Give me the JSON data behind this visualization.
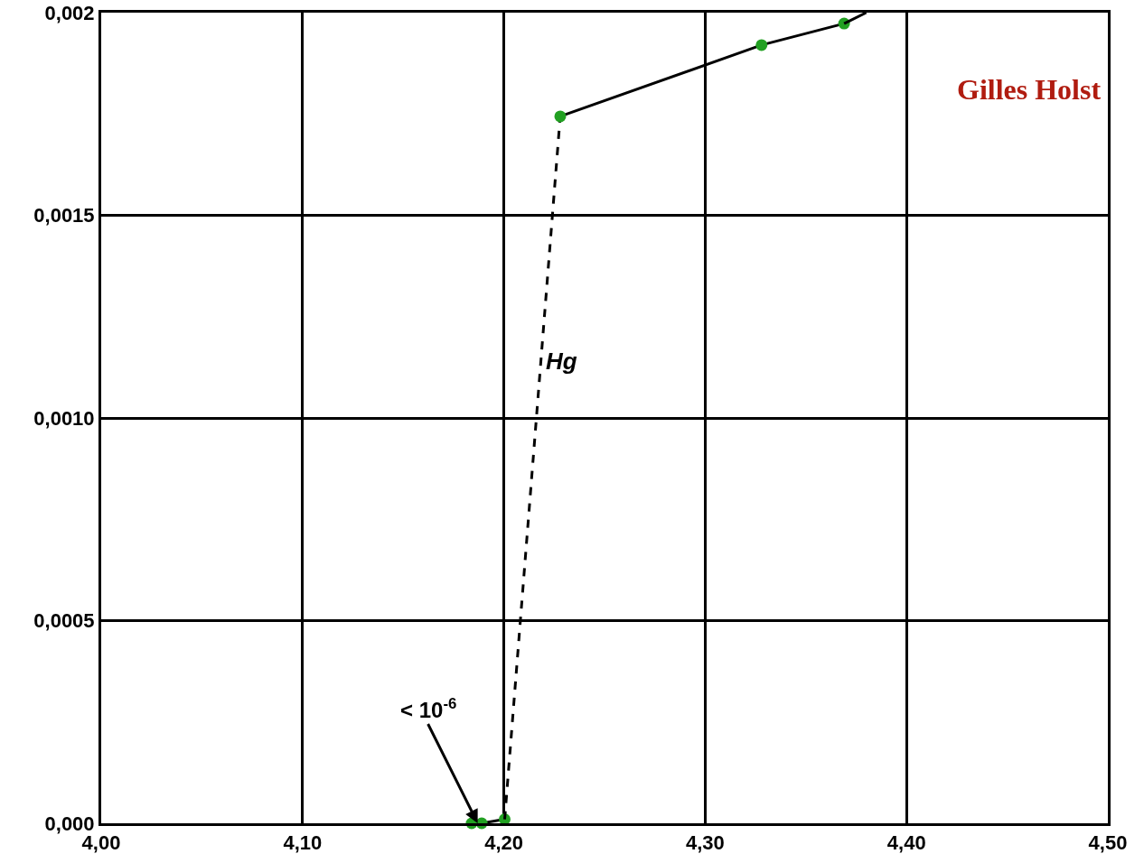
{
  "chart_data": {
    "type": "line",
    "xlim": [
      4.0,
      4.5
    ],
    "ylim": [
      0,
      0.002
    ],
    "xticks": [
      {
        "value": 4.0,
        "label": "4,00"
      },
      {
        "value": 4.1,
        "label": "4,10"
      },
      {
        "value": 4.2,
        "label": "4,20"
      },
      {
        "value": 4.3,
        "label": "4,30"
      },
      {
        "value": 4.4,
        "label": "4,40"
      },
      {
        "value": 4.5,
        "label": "4,50"
      }
    ],
    "yticks": [
      {
        "value": 0,
        "label": "0,000"
      },
      {
        "value": 0.0005,
        "label": "0,0005"
      },
      {
        "value": 0.001,
        "label": "0,0010"
      },
      {
        "value": 0.0015,
        "label": "0,0015"
      },
      {
        "value": 0.002,
        "label": "0,002"
      }
    ],
    "grid": true,
    "series": [
      {
        "color": "#000000",
        "marker": "circle",
        "line_style": "solid",
        "x": [
          4.184,
          4.189,
          4.2004
        ],
        "values": [
          0,
          0,
          1e-05
        ]
      },
      {
        "color": "#000000",
        "line_style": "dashed",
        "x": [
          4.2004,
          4.228
        ],
        "values": [
          1e-05,
          0.001744
        ]
      },
      {
        "color": "#000000",
        "marker": "circle",
        "line_style": "solid",
        "x": [
          4.228,
          4.328,
          4.369
        ],
        "values": [
          0.001744,
          0.00192,
          0.001973
        ]
      },
      {
        "color": "#000000",
        "line_style": "solid",
        "x": [
          4.369,
          4.38
        ],
        "values": [
          0.001973,
          0.002
        ]
      }
    ],
    "annotations": [
      {
        "text": "< 10$^{-6}$",
        "x": 4.187,
        "y": 0
      },
      "Hg",
      "Gilles Holst"
    ]
  }
}
